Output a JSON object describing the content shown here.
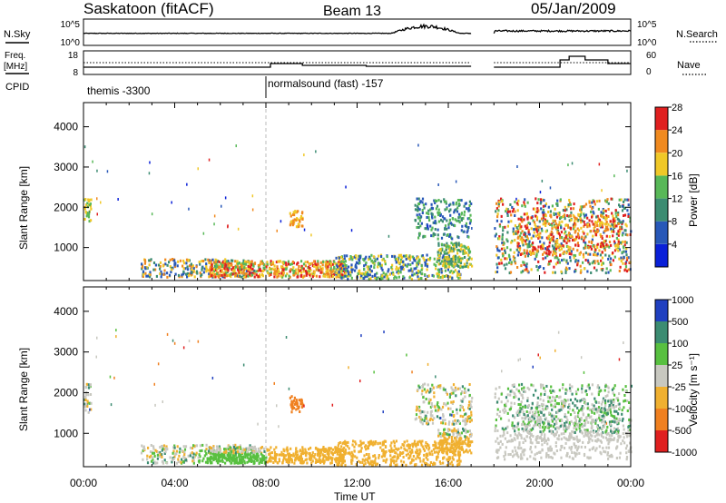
{
  "header": {
    "title": "Saskatoon (fitACF)",
    "beam": "Beam 13",
    "date": "05/Jan/2009"
  },
  "summary_panels": {
    "nsky_label": "N.Sky",
    "nsky_ticks": [
      "10^5",
      "10^0"
    ],
    "nsearch_label": "N.Search",
    "nsearch_ticks": [
      "10^5",
      "10^0"
    ],
    "freq_label_1": "Freq.",
    "freq_label_2": "[MHz]",
    "freq_ticks": [
      "18",
      "8"
    ],
    "nave_label": "Nave",
    "nave_ticks": [
      "60",
      "0"
    ],
    "cpid_label": "CPID",
    "cpid_segments": [
      {
        "start_hour": 0,
        "text": "themis -3300"
      },
      {
        "start_hour": 8,
        "text": "normalsound (fast) -157"
      }
    ],
    "data_gap": [
      17,
      18
    ]
  },
  "chart_data": [
    {
      "type": "heatmap",
      "title": "Power",
      "xlabel": "Time UT",
      "ylabel": "Slant Range [km]",
      "xlim": [
        0,
        24
      ],
      "ylim": [
        180,
        4600
      ],
      "x_ticks": [
        "00:00",
        "04:00",
        "08:00",
        "12:00",
        "16:00",
        "20:00",
        "00:00"
      ],
      "y_ticks": [
        1000,
        2000,
        3000,
        4000
      ],
      "colorbar_label": "Power [dB]",
      "colorbar_ticks": [
        4,
        8,
        12,
        16,
        20,
        24,
        28
      ],
      "colorbar_colors": [
        "#0a20d8",
        "#2858b8",
        "#3c8c72",
        "#58b858",
        "#f0c828",
        "#f08a20",
        "#e02020"
      ]
    },
    {
      "type": "heatmap",
      "title": "Velocity",
      "xlabel": "Time UT",
      "ylabel": "Slant Range [km]",
      "xlim": [
        0,
        24
      ],
      "ylim": [
        180,
        4600
      ],
      "x_ticks": [
        "00:00",
        "04:00",
        "08:00",
        "12:00",
        "16:00",
        "20:00",
        "00:00"
      ],
      "y_ticks": [
        1000,
        2000,
        3000,
        4000
      ],
      "colorbar_label": "Velocity [m s⁻¹]",
      "colorbar_ticks": [
        1000,
        500,
        100,
        25,
        -25,
        -100,
        -500,
        -1000
      ],
      "colorbar_colors": [
        "#2040c0",
        "#3c8c72",
        "#58c040",
        "#c8c8c0",
        "#f0b030",
        "#f08020",
        "#e02020"
      ]
    }
  ]
}
